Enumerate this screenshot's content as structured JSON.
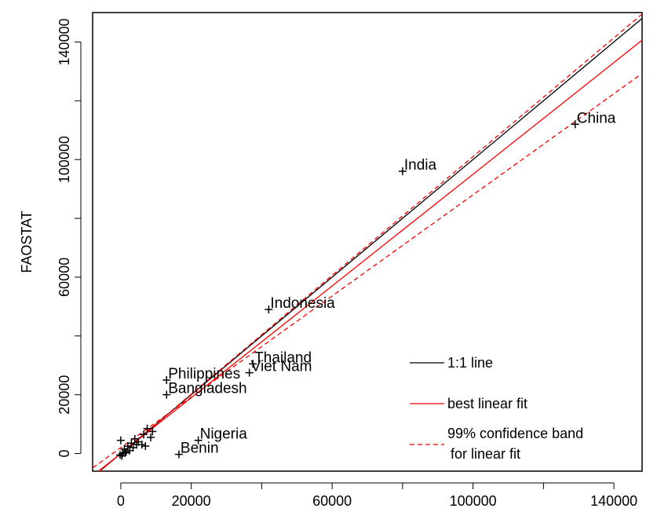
{
  "chart_data": {
    "type": "scatter",
    "title": "",
    "xlabel": "",
    "ylabel": "FAOSTAT",
    "xlim": [
      -8000,
      148000
    ],
    "ylim": [
      -6000,
      150000
    ],
    "x_ticks": [
      0,
      20000,
      60000,
      100000,
      140000
    ],
    "y_ticks": [
      0,
      20000,
      60000,
      100000,
      140000
    ],
    "labeled_points": [
      {
        "label": "China",
        "x": 129000,
        "y": 112000
      },
      {
        "label": "India",
        "x": 80000,
        "y": 96000
      },
      {
        "label": "Indonesia",
        "x": 42000,
        "y": 49000
      },
      {
        "label": "Thailand",
        "x": 37500,
        "y": 30500
      },
      {
        "label": "Viet Nam",
        "x": 36500,
        "y": 27500
      },
      {
        "label": "Philippines",
        "x": 13000,
        "y": 25000
      },
      {
        "label": "Bangladesh",
        "x": 13000,
        "y": 20000
      },
      {
        "label": "Nigeria",
        "x": 22000,
        "y": 4500
      },
      {
        "label": "Benin",
        "x": 16500,
        "y": -300
      }
    ],
    "unlabeled_points": [
      {
        "x": 0,
        "y": 4500
      },
      {
        "x": 500,
        "y": 0
      },
      {
        "x": 1000,
        "y": 1500
      },
      {
        "x": 1500,
        "y": 500
      },
      {
        "x": 2000,
        "y": 2500
      },
      {
        "x": 2500,
        "y": 1000
      },
      {
        "x": 3000,
        "y": 3500
      },
      {
        "x": 3500,
        "y": 2000
      },
      {
        "x": 4000,
        "y": 5000
      },
      {
        "x": 4500,
        "y": 3000
      },
      {
        "x": 5000,
        "y": 4000
      },
      {
        "x": 6000,
        "y": 3000
      },
      {
        "x": 6500,
        "y": 6500
      },
      {
        "x": 7000,
        "y": 2500
      },
      {
        "x": 7500,
        "y": 8500
      },
      {
        "x": 8500,
        "y": 5500
      },
      {
        "x": 9000,
        "y": 7500
      },
      {
        "x": -200,
        "y": -500
      },
      {
        "x": 300,
        "y": -800
      },
      {
        "x": 1200,
        "y": 200
      }
    ],
    "lines": [
      {
        "name": "1:1 line",
        "color": "#000000",
        "style": "solid",
        "slope": 1.0,
        "intercept": 0
      },
      {
        "name": "best linear fit",
        "color": "#ff0000",
        "style": "solid",
        "slope": 0.95,
        "intercept": 0
      },
      {
        "name": "99% confidence band for linear fit",
        "color": "#ff0000",
        "style": "dashed",
        "slope": 1.01,
        "intercept": 0
      },
      {
        "name": "",
        "color": "#ff0000",
        "style": "dashed",
        "slope": 0.86,
        "intercept": 2000
      }
    ],
    "legend": {
      "placement": "bottom-right",
      "entries": [
        {
          "label": "1:1 line",
          "color": "#000000",
          "style": "solid"
        },
        {
          "label": "best linear fit",
          "color": "#ff0000",
          "style": "solid"
        },
        {
          "label": "99% confidence band",
          "label2": "for linear fit",
          "color": "#ff0000",
          "style": "dashed"
        }
      ]
    }
  }
}
